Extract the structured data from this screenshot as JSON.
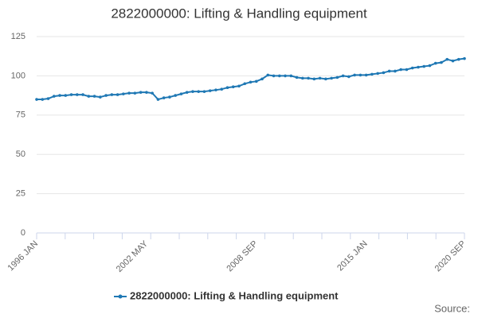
{
  "chart_data": {
    "type": "line",
    "title": "2822000000: Lifting & Handling equipment",
    "categories": [
      "1996 JAN",
      null,
      null,
      null,
      null,
      null,
      null,
      null,
      null,
      null,
      null,
      null,
      null,
      null,
      null,
      null,
      null,
      null,
      null,
      "2002 MAY",
      null,
      null,
      null,
      null,
      null,
      null,
      null,
      null,
      null,
      null,
      null,
      null,
      null,
      null,
      null,
      null,
      null,
      null,
      "2008 SEP",
      null,
      null,
      null,
      null,
      null,
      null,
      null,
      null,
      null,
      null,
      null,
      null,
      null,
      null,
      null,
      null,
      null,
      null,
      "2015 JAN",
      null,
      null,
      null,
      null,
      null,
      null,
      null,
      null,
      null,
      null,
      null,
      null,
      null,
      null,
      null,
      null,
      "2020 SEP"
    ],
    "series": [
      {
        "name": "2822000000: Lifting & Handling equipment",
        "color": "#1f78b4",
        "values": [
          85,
          85,
          85.5,
          87,
          87.5,
          87.5,
          88,
          88,
          88,
          87,
          87,
          86.5,
          87.5,
          88,
          88,
          88.5,
          89,
          89,
          89.5,
          89.5,
          89,
          85,
          86,
          86.5,
          87.5,
          88.5,
          89.5,
          90,
          90,
          90,
          90.5,
          91,
          91.5,
          92.5,
          93,
          93.5,
          95,
          96,
          96.5,
          98,
          100.5,
          100,
          100,
          100,
          100,
          99,
          98.5,
          98.5,
          98,
          98.5,
          98,
          98.5,
          99,
          100,
          99.5,
          100.5,
          100.5,
          100.5,
          101,
          101.5,
          102,
          103,
          103,
          104,
          104,
          105,
          105.5,
          106,
          106.5,
          108,
          108.5,
          110.5,
          109.5,
          110.5,
          111
        ]
      }
    ],
    "ylim": [
      0,
      125
    ],
    "yticks": [
      0,
      25,
      50,
      75,
      100,
      125
    ],
    "grid": true,
    "source_label": "Source:"
  }
}
